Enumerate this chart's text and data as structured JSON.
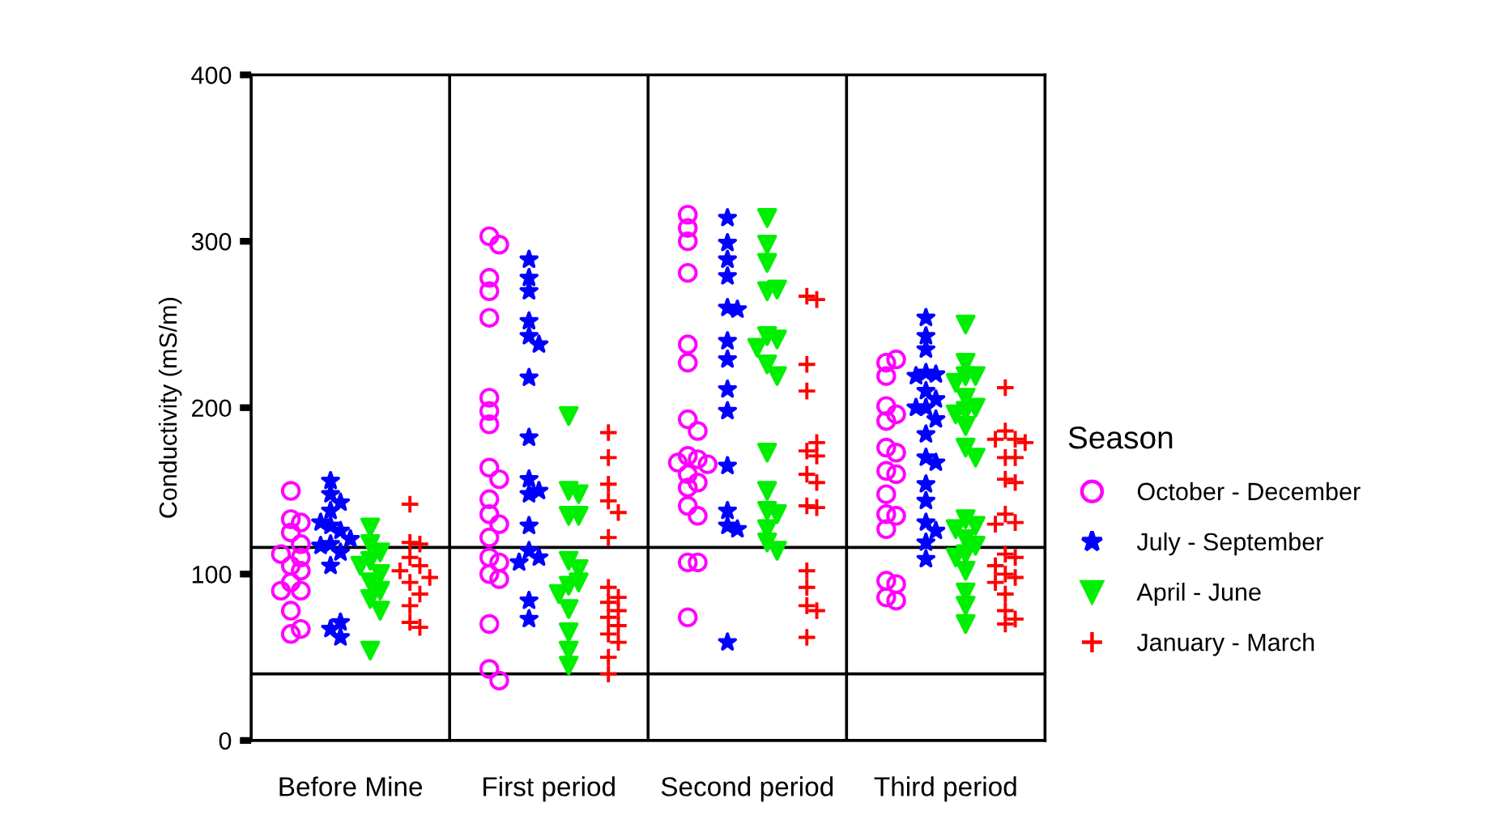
{
  "chart_data": {
    "type": "scatter",
    "ylabel": "Conductivity (mS/m)",
    "legend_title": "Season",
    "legend": "right",
    "grid": false,
    "categories": [
      "Before Mine",
      "First period",
      "Second period",
      "Third period"
    ],
    "ylim": [
      0,
      400
    ],
    "yticks": [
      0,
      100,
      200,
      300,
      400
    ],
    "ref_lines": [
      {
        "axis": "y",
        "value": 116,
        "color": "#000000"
      },
      {
        "axis": "y",
        "value": 40,
        "color": "#000000"
      }
    ],
    "series": [
      {
        "name": "October - December",
        "color": "#ff00ff",
        "marker": "circle",
        "x": [
          "Before Mine",
          "Before Mine",
          "Before Mine",
          "Before Mine",
          "Before Mine",
          "Before Mine",
          "Before Mine",
          "Before Mine",
          "Before Mine",
          "Before Mine",
          "Before Mine",
          "Before Mine",
          "Before Mine",
          "Before Mine",
          "Before Mine",
          "First period",
          "First period",
          "First period",
          "First period",
          "First period",
          "First period",
          "First period",
          "First period",
          "First period",
          "First period",
          "First period",
          "First period",
          "First period",
          "First period",
          "First period",
          "First period",
          "First period",
          "First period",
          "First period",
          "First period",
          "First period",
          "Second period",
          "Second period",
          "Second period",
          "Second period",
          "Second period",
          "Second period",
          "Second period",
          "Second period",
          "Second period",
          "Second period",
          "Second period",
          "Second period",
          "Second period",
          "Second period",
          "Second period",
          "Second period",
          "Second period",
          "Second period",
          "Second period",
          "Second period",
          "Third period",
          "Third period",
          "Third period",
          "Third period",
          "Third period",
          "Third period",
          "Third period",
          "Third period",
          "Third period",
          "Third period",
          "Third period",
          "Third period",
          "Third period",
          "Third period",
          "Third period",
          "Third period",
          "Third period",
          "Third period"
        ],
        "values": [
          133,
          131,
          105,
          102,
          95,
          90,
          78,
          64,
          67,
          150,
          125,
          118,
          112,
          110,
          90,
          303,
          298,
          278,
          270,
          254,
          206,
          198,
          190,
          164,
          157,
          145,
          136,
          130,
          122,
          110,
          107,
          100,
          97,
          70,
          43,
          36,
          316,
          308,
          300,
          281,
          238,
          227,
          193,
          186,
          171,
          169,
          167,
          166,
          160,
          155,
          152,
          141,
          135,
          107,
          107,
          74,
          227,
          229,
          219,
          201,
          196,
          192,
          176,
          173,
          162,
          160,
          148,
          136,
          135,
          127,
          96,
          94,
          86,
          84
        ]
      },
      {
        "name": "July - September",
        "color": "#0000ff",
        "marker": "star",
        "x": [
          "Before Mine",
          "Before Mine",
          "Before Mine",
          "Before Mine",
          "Before Mine",
          "Before Mine",
          "Before Mine",
          "Before Mine",
          "Before Mine",
          "Before Mine",
          "Before Mine",
          "Before Mine",
          "Before Mine",
          "Before Mine",
          "Before Mine",
          "First period",
          "First period",
          "First period",
          "First period",
          "First period",
          "First period",
          "First period",
          "First period",
          "First period",
          "First period",
          "First period",
          "First period",
          "First period",
          "First period",
          "First period",
          "First period",
          "First period",
          "Second period",
          "Second period",
          "Second period",
          "Second period",
          "Second period",
          "Second period",
          "Second period",
          "Second period",
          "Second period",
          "Second period",
          "Second period",
          "Second period",
          "Second period",
          "Second period",
          "Second period",
          "Third period",
          "Third period",
          "Third period",
          "Third period",
          "Third period",
          "Third period",
          "Third period",
          "Third period",
          "Third period",
          "Third period",
          "Third period",
          "Third period",
          "Third period",
          "Third period",
          "Third period",
          "Third period",
          "Third period",
          "Third period",
          "Third period",
          "Third period"
        ],
        "values": [
          156,
          148,
          143,
          138,
          129,
          126,
          118,
          105,
          113,
          131,
          67,
          62,
          71,
          117,
          121,
          289,
          278,
          270,
          252,
          243,
          238,
          218,
          182,
          157,
          150,
          148,
          129,
          114,
          110,
          107,
          84,
          73,
          314,
          299,
          289,
          279,
          260,
          259,
          240,
          229,
          211,
          198,
          165,
          138,
          129,
          127,
          59,
          254,
          243,
          235,
          221,
          220,
          219,
          210,
          205,
          200,
          200,
          193,
          184,
          170,
          167,
          154,
          144,
          131,
          126,
          119,
          109
        ]
      },
      {
        "name": "April - June",
        "color": "#00ee00",
        "marker": "triangle",
        "x": [
          "Before Mine",
          "Before Mine",
          "Before Mine",
          "Before Mine",
          "Before Mine",
          "Before Mine",
          "Before Mine",
          "Before Mine",
          "Before Mine",
          "Before Mine",
          "Before Mine",
          "First period",
          "First period",
          "First period",
          "First period",
          "First period",
          "First period",
          "First period",
          "First period",
          "First period",
          "First period",
          "First period",
          "First period",
          "First period",
          "First period",
          "Second period",
          "Second period",
          "Second period",
          "Second period",
          "Second period",
          "Second period",
          "Second period",
          "Second period",
          "Second period",
          "Second period",
          "Second period",
          "Second period",
          "Second period",
          "Second period",
          "Second period",
          "Second period",
          "Second period",
          "Third period",
          "Third period",
          "Third period",
          "Third period",
          "Third period",
          "Third period",
          "Third period",
          "Third period",
          "Third period",
          "Third period",
          "Third period",
          "Third period",
          "Third period",
          "Third period",
          "Third period",
          "Third period",
          "Third period",
          "Third period",
          "Third period",
          "Third period",
          "Third period",
          "Third period",
          "Third period"
        ],
        "values": [
          128,
          118,
          113,
          95,
          90,
          85,
          54,
          78,
          108,
          100,
          105,
          195,
          150,
          148,
          135,
          135,
          108,
          103,
          93,
          95,
          88,
          79,
          65,
          54,
          45,
          314,
          298,
          287,
          270,
          271,
          243,
          241,
          236,
          226,
          219,
          173,
          150,
          138,
          136,
          127,
          119,
          114,
          250,
          227,
          219,
          219,
          215,
          206,
          200,
          198,
          196,
          189,
          176,
          170,
          133,
          129,
          127,
          121,
          117,
          112,
          110,
          102,
          89,
          81,
          70
        ]
      },
      {
        "name": "January - March",
        "color": "#ff0000",
        "marker": "cross",
        "x": [
          "Before Mine",
          "Before Mine",
          "Before Mine",
          "Before Mine",
          "Before Mine",
          "Before Mine",
          "Before Mine",
          "Before Mine",
          "Before Mine",
          "Before Mine",
          "Before Mine",
          "Before Mine",
          "First period",
          "First period",
          "First period",
          "First period",
          "First period",
          "First period",
          "First period",
          "First period",
          "First period",
          "First period",
          "First period",
          "First period",
          "First period",
          "First period",
          "First period",
          "First period",
          "Second period",
          "Second period",
          "Second period",
          "Second period",
          "Second period",
          "Second period",
          "Second period",
          "Second period",
          "Second period",
          "Second period",
          "Second period",
          "Second period",
          "Second period",
          "Second period",
          "Second period",
          "Second period",
          "Third period",
          "Third period",
          "Third period",
          "Third period",
          "Third period",
          "Third period",
          "Third period",
          "Third period",
          "Third period",
          "Third period",
          "Third period",
          "Third period",
          "Third period",
          "Third period",
          "Third period",
          "Third period",
          "Third period",
          "Third period",
          "Third period",
          "Third period",
          "Third period",
          "Third period"
        ],
        "values": [
          142,
          119,
          110,
          105,
          95,
          88,
          81,
          71,
          68,
          102,
          98,
          118,
          185,
          170,
          154,
          144,
          137,
          122,
          92,
          86,
          83,
          78,
          74,
          69,
          64,
          59,
          50,
          40,
          267,
          265,
          226,
          210,
          174,
          179,
          171,
          160,
          155,
          141,
          140,
          102,
          92,
          81,
          78,
          62,
          212,
          186,
          181,
          181,
          179,
          170,
          170,
          157,
          155,
          136,
          131,
          130,
          112,
          110,
          105,
          100,
          98,
          95,
          88,
          78,
          73,
          70
        ]
      }
    ]
  }
}
